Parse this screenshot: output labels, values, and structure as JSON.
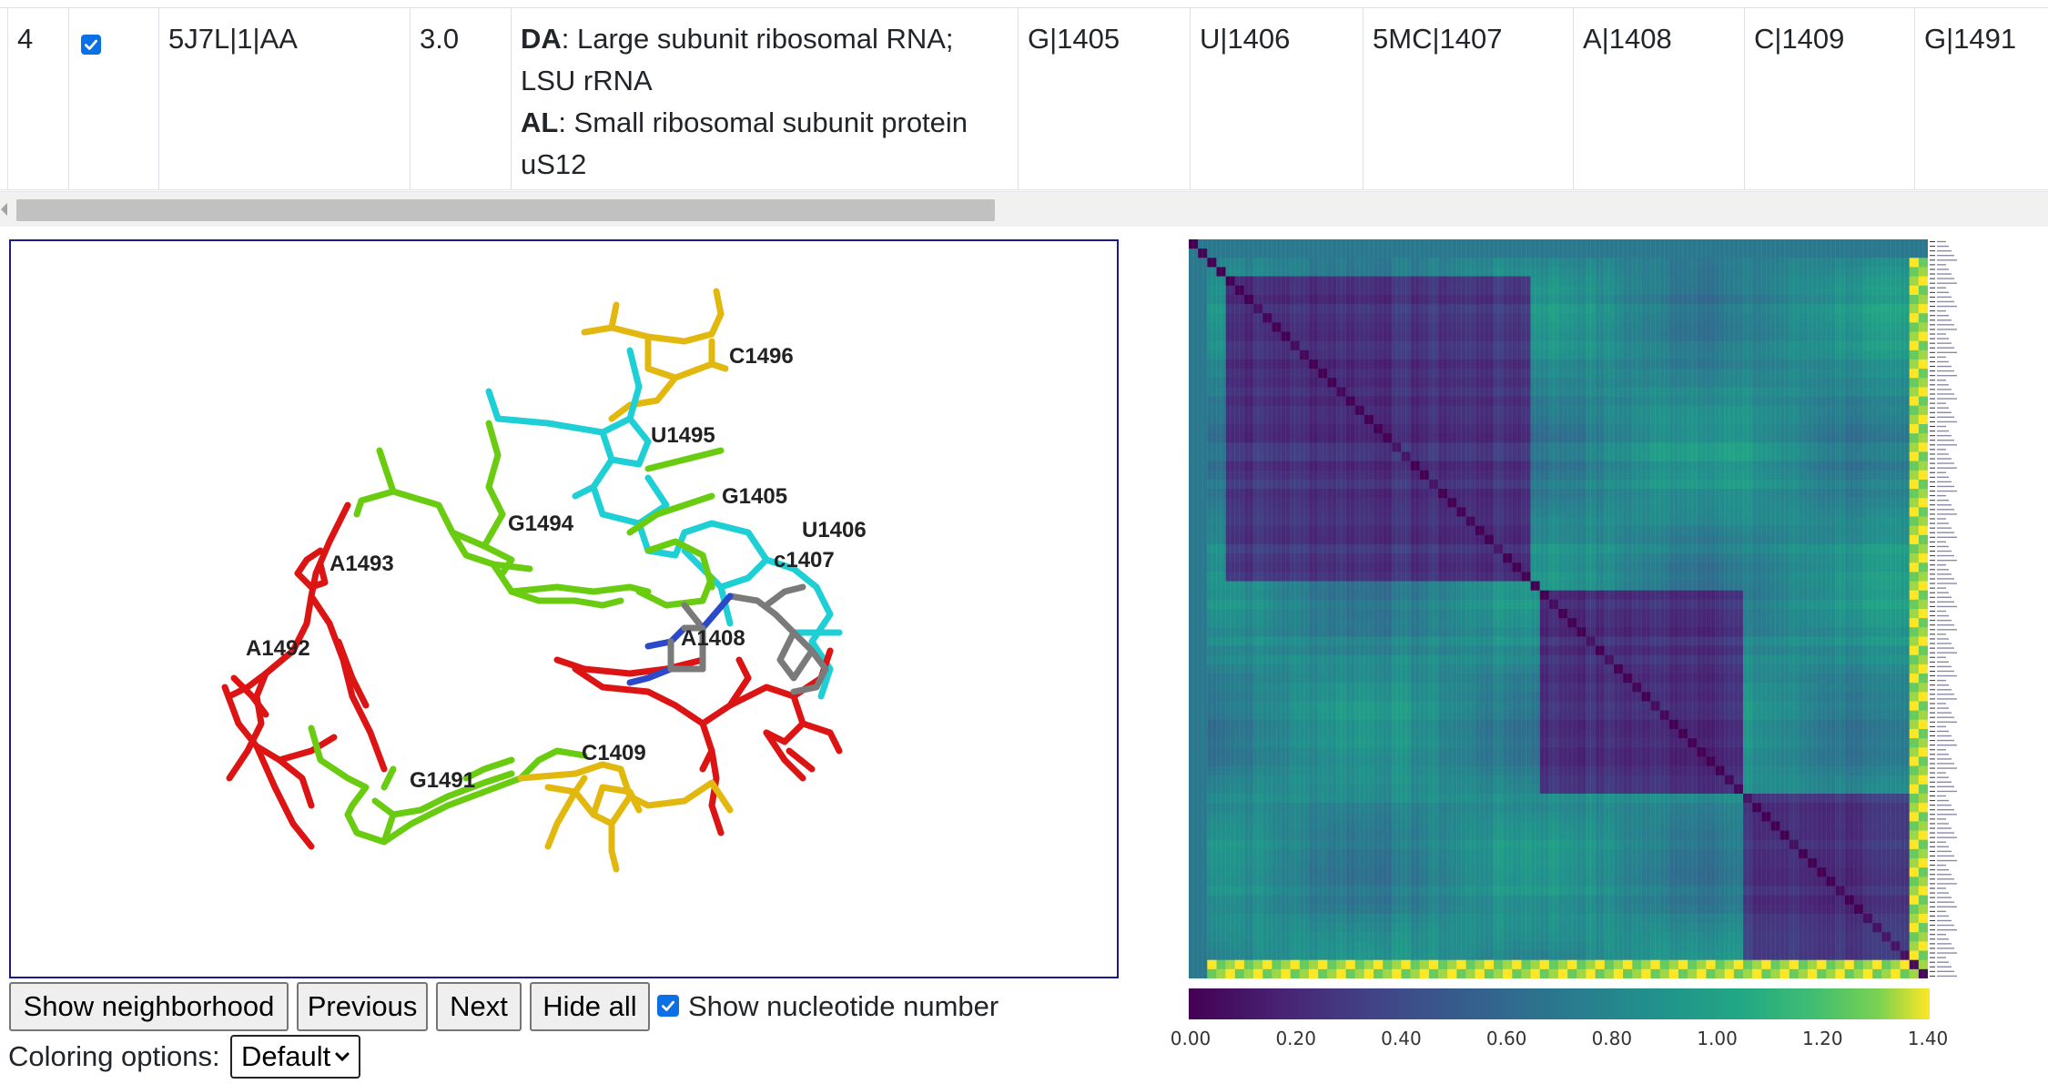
{
  "table": {
    "row": {
      "index": "4",
      "checked": true,
      "id": "5J7L|1|AA",
      "resolution": "3.0",
      "chains": [
        {
          "code": "DA",
          "desc": ": Large subunit ribosomal RNA; LSU rRNA"
        },
        {
          "code": "AL",
          "desc": ": Small ribosomal subunit protein uS12"
        }
      ],
      "nucleotides": [
        "G|1405",
        "U|1406",
        "5MC|1407",
        "A|1408",
        "C|1409",
        "G|1491"
      ]
    }
  },
  "viewer": {
    "labels": [
      "C1496",
      "U1495",
      "G1405",
      "U1406",
      "c1407",
      "G1494",
      "A1493",
      "A1492",
      "A1408",
      "C1409",
      "G1491"
    ]
  },
  "heatmap": {
    "colorbar_ticks": [
      "0.00",
      "0.20",
      "0.40",
      "0.60",
      "0.80",
      "1.00",
      "1.20",
      "1.40"
    ],
    "colormap": "viridis",
    "range": [
      0,
      1.4
    ]
  },
  "controls": {
    "show_neighborhood": "Show neighborhood",
    "previous": "Previous",
    "next": "Next",
    "hide_all": "Hide all",
    "show_number_label": "Show nucleotide number",
    "show_number_checked": true,
    "coloring_label": "Coloring options:",
    "coloring_value": "Default"
  }
}
